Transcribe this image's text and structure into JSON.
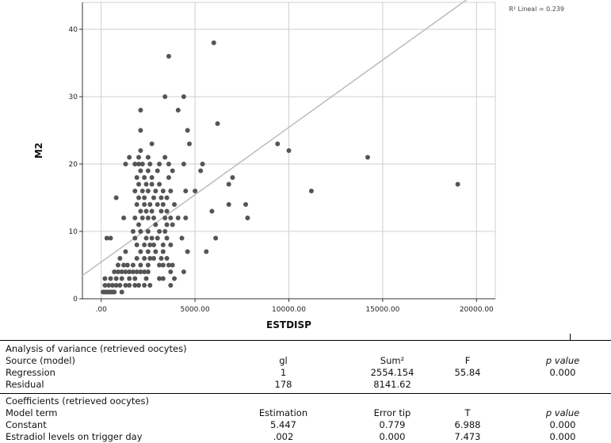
{
  "chart_data": {
    "type": "scatter",
    "xlabel": "ESTDISP",
    "ylabel": "M2",
    "xlim": [
      -1000,
      21000
    ],
    "ylim": [
      0,
      44
    ],
    "x_ticks": [
      0,
      5000,
      10000,
      15000,
      20000
    ],
    "x_tick_labels": [
      ".00",
      "5000.00",
      "10000.00",
      "15000.00",
      "20000.00"
    ],
    "y_ticks": [
      0,
      10,
      20,
      30,
      40
    ],
    "y_tick_labels": [
      "0",
      "10",
      "20",
      "30",
      "40"
    ],
    "grid": true,
    "fit_label": "R² Lineal = 0.239",
    "fit_line": {
      "intercept": 5.447,
      "slope": 0.002
    },
    "point_color": "#555555",
    "line_color": "#bbbbbb",
    "points": [
      [
        100,
        1
      ],
      [
        200,
        1
      ],
      [
        300,
        1
      ],
      [
        400,
        1
      ],
      [
        500,
        1
      ],
      [
        600,
        1
      ],
      [
        700,
        1
      ],
      [
        1100,
        1
      ],
      [
        200,
        2
      ],
      [
        400,
        2
      ],
      [
        600,
        2
      ],
      [
        800,
        2
      ],
      [
        1000,
        2
      ],
      [
        1300,
        2
      ],
      [
        1500,
        2
      ],
      [
        1800,
        2
      ],
      [
        2000,
        2
      ],
      [
        2300,
        2
      ],
      [
        2600,
        2
      ],
      [
        3700,
        2
      ],
      [
        200,
        3
      ],
      [
        500,
        3
      ],
      [
        800,
        3
      ],
      [
        1100,
        3
      ],
      [
        1500,
        3
      ],
      [
        1800,
        3
      ],
      [
        2400,
        3
      ],
      [
        3100,
        3
      ],
      [
        3300,
        3
      ],
      [
        3900,
        3
      ],
      [
        700,
        4
      ],
      [
        900,
        4
      ],
      [
        1100,
        4
      ],
      [
        1300,
        4
      ],
      [
        1500,
        4
      ],
      [
        1700,
        4
      ],
      [
        1900,
        4
      ],
      [
        2100,
        4
      ],
      [
        2300,
        4
      ],
      [
        2500,
        4
      ],
      [
        3700,
        4
      ],
      [
        4400,
        4
      ],
      [
        900,
        5
      ],
      [
        1200,
        5
      ],
      [
        1400,
        5
      ],
      [
        1700,
        5
      ],
      [
        2100,
        5
      ],
      [
        2500,
        5
      ],
      [
        3100,
        5
      ],
      [
        3300,
        5
      ],
      [
        3600,
        5
      ],
      [
        3800,
        5
      ],
      [
        1000,
        6
      ],
      [
        1900,
        6
      ],
      [
        2300,
        6
      ],
      [
        2600,
        6
      ],
      [
        2800,
        6
      ],
      [
        3200,
        6
      ],
      [
        3500,
        6
      ],
      [
        1300,
        7
      ],
      [
        2100,
        7
      ],
      [
        2500,
        7
      ],
      [
        2900,
        7
      ],
      [
        3300,
        7
      ],
      [
        4600,
        7
      ],
      [
        5600,
        7
      ],
      [
        1900,
        8
      ],
      [
        2300,
        8
      ],
      [
        2600,
        8
      ],
      [
        2800,
        8
      ],
      [
        3300,
        8
      ],
      [
        3700,
        8
      ],
      [
        300,
        9
      ],
      [
        500,
        9
      ],
      [
        1800,
        9
      ],
      [
        2400,
        9
      ],
      [
        2700,
        9
      ],
      [
        3000,
        9
      ],
      [
        3500,
        9
      ],
      [
        4300,
        9
      ],
      [
        6100,
        9
      ],
      [
        1700,
        10
      ],
      [
        2100,
        10
      ],
      [
        2500,
        10
      ],
      [
        3100,
        10
      ],
      [
        3400,
        10
      ],
      [
        2000,
        11
      ],
      [
        2900,
        11
      ],
      [
        3500,
        11
      ],
      [
        3800,
        11
      ],
      [
        1200,
        12
      ],
      [
        1800,
        12
      ],
      [
        2200,
        12
      ],
      [
        2500,
        12
      ],
      [
        2800,
        12
      ],
      [
        3400,
        12
      ],
      [
        3700,
        12
      ],
      [
        4100,
        12
      ],
      [
        4500,
        12
      ],
      [
        7800,
        12
      ],
      [
        2100,
        13
      ],
      [
        2400,
        13
      ],
      [
        2700,
        13
      ],
      [
        3200,
        13
      ],
      [
        3500,
        13
      ],
      [
        5900,
        13
      ],
      [
        1900,
        14
      ],
      [
        2300,
        14
      ],
      [
        2600,
        14
      ],
      [
        3000,
        14
      ],
      [
        3300,
        14
      ],
      [
        3900,
        14
      ],
      [
        6800,
        14
      ],
      [
        7700,
        14
      ],
      [
        800,
        15
      ],
      [
        2000,
        15
      ],
      [
        2300,
        15
      ],
      [
        2800,
        15
      ],
      [
        3200,
        15
      ],
      [
        3500,
        15
      ],
      [
        1800,
        16
      ],
      [
        2200,
        16
      ],
      [
        2500,
        16
      ],
      [
        2900,
        16
      ],
      [
        3300,
        16
      ],
      [
        3700,
        16
      ],
      [
        4500,
        16
      ],
      [
        5000,
        16
      ],
      [
        11200,
        16
      ],
      [
        2000,
        17
      ],
      [
        2400,
        17
      ],
      [
        2700,
        17
      ],
      [
        3100,
        17
      ],
      [
        6800,
        17
      ],
      [
        19000,
        17
      ],
      [
        1900,
        18
      ],
      [
        2300,
        18
      ],
      [
        2700,
        18
      ],
      [
        3600,
        18
      ],
      [
        7000,
        18
      ],
      [
        2100,
        19
      ],
      [
        2500,
        19
      ],
      [
        3000,
        19
      ],
      [
        3800,
        19
      ],
      [
        5300,
        19
      ],
      [
        1300,
        20
      ],
      [
        1800,
        20
      ],
      [
        2000,
        20
      ],
      [
        2200,
        20
      ],
      [
        2600,
        20
      ],
      [
        3100,
        20
      ],
      [
        3600,
        20
      ],
      [
        4400,
        20
      ],
      [
        5400,
        20
      ],
      [
        1500,
        21
      ],
      [
        2000,
        21
      ],
      [
        2500,
        21
      ],
      [
        3400,
        21
      ],
      [
        14200,
        21
      ],
      [
        2100,
        22
      ],
      [
        10000,
        22
      ],
      [
        2700,
        23
      ],
      [
        4700,
        23
      ],
      [
        9400,
        23
      ],
      [
        2100,
        25
      ],
      [
        4600,
        25
      ],
      [
        6200,
        26
      ],
      [
        2100,
        28
      ],
      [
        4100,
        28
      ],
      [
        3400,
        30
      ],
      [
        4400,
        30
      ],
      [
        3600,
        36
      ],
      [
        6000,
        38
      ]
    ]
  },
  "anova": {
    "title": "Analysis of variance (retrieved oocytes)",
    "header": [
      "Source (model)",
      "gl",
      "Sum²",
      "F",
      "p value"
    ],
    "rows": [
      [
        "Regression",
        "1",
        "2554.154",
        "55.84",
        "0.000"
      ],
      [
        "Residual",
        "178",
        "8141.62",
        "",
        ""
      ]
    ]
  },
  "coefficients": {
    "title": "Coefficients (retrieved oocytes)",
    "header": [
      "Model term",
      "Estimation",
      "Error tip",
      "T",
      "p value"
    ],
    "rows": [
      [
        "Constant",
        "5.447",
        "0.779",
        "6.988",
        "0.000"
      ],
      [
        "Estradiol levels on trigger day",
        ".002",
        "0.000",
        "7.473",
        "0.000"
      ]
    ]
  }
}
